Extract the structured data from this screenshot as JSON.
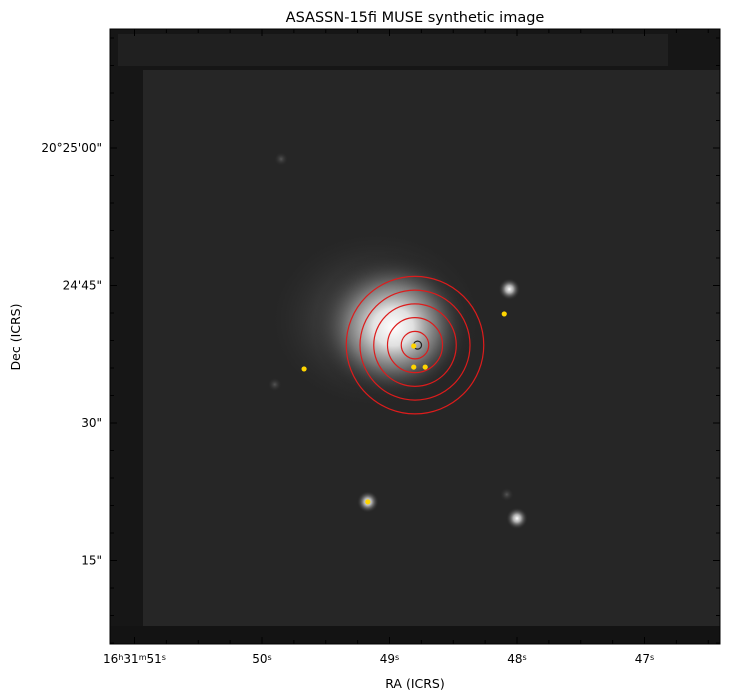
{
  "figure": {
    "title": "ASASSN-15fi MUSE synthetic image",
    "xlabel": "RA (ICRS)",
    "ylabel": "Dec (ICRS)"
  },
  "ra_ticks": [
    {
      "h": "16",
      "m": "31",
      "s": "51",
      "sec": 51,
      "full": true
    },
    {
      "s": "50",
      "sec": 50
    },
    {
      "s": "49",
      "sec": 49
    },
    {
      "s": "48",
      "sec": 48
    },
    {
      "s": "47",
      "sec": 47
    }
  ],
  "dec_ticks": [
    {
      "label": "20°25'00\"",
      "arcsec": 0
    },
    {
      "label": "24'45\"",
      "arcsec": -15
    },
    {
      "label": "30\"",
      "arcsec": -30
    },
    {
      "label": "15\"",
      "arcsec": -45
    }
  ],
  "image": {
    "colormap": "grayscale",
    "host_galaxy": {
      "ra_sec": 48.83,
      "dec_arcsec": -21.5
    },
    "sources": [
      {
        "name": "star-northwest",
        "ra_sec": 49.85,
        "dec_arcsec": -1.2
      },
      {
        "name": "star-east-upper",
        "ra_sec": 48.06,
        "dec_arcsec": -15.4
      },
      {
        "name": "star-west-mid",
        "ra_sec": 49.9,
        "dec_arcsec": -25.8
      },
      {
        "name": "star-south-left",
        "ra_sec": 49.17,
        "dec_arcsec": -38.6
      },
      {
        "name": "star-south-right",
        "ra_sec": 48.0,
        "dec_arcsec": -40.4
      },
      {
        "name": "star-south-small",
        "ra_sec": 48.08,
        "dec_arcsec": -37.8
      }
    ]
  },
  "overlays": {
    "circle_color": "#dd1c1c",
    "marker_color": "#ffd500",
    "concentric_circles": {
      "center": {
        "ra_sec": 48.8,
        "dec_arcsec": -21.5
      },
      "radii_arcsec": [
        1.5,
        3,
        4.5,
        6,
        7.5
      ]
    },
    "transient_marker": {
      "ra_sec": 48.78,
      "dec_arcsec": -21.5
    },
    "yellow_points": [
      {
        "ra_sec": 48.81,
        "dec_arcsec": -21.6
      },
      {
        "ra_sec": 48.81,
        "dec_arcsec": -23.9
      },
      {
        "ra_sec": 48.72,
        "dec_arcsec": -23.9
      },
      {
        "ra_sec": 49.67,
        "dec_arcsec": -24.1
      },
      {
        "ra_sec": 48.1,
        "dec_arcsec": -18.1
      },
      {
        "ra_sec": 49.17,
        "dec_arcsec": -38.6
      }
    ]
  }
}
